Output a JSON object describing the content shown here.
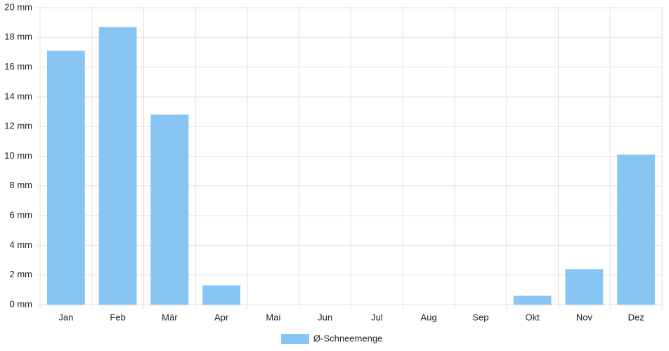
{
  "chart_data": {
    "type": "bar",
    "categories": [
      "Jan",
      "Feb",
      "Mär",
      "Apr",
      "Mai",
      "Jun",
      "Jul",
      "Aug",
      "Sep",
      "Okt",
      "Nov",
      "Dez"
    ],
    "series": [
      {
        "name": "Ø-Schneemenge",
        "color": "#88c5f2",
        "values": [
          17.1,
          18.7,
          12.8,
          1.3,
          0,
          0,
          0,
          0,
          0,
          0.6,
          2.4,
          10.1
        ]
      }
    ],
    "ylim": [
      0,
      20
    ],
    "yticks": [
      {
        "value": 0,
        "label": "0 mm"
      },
      {
        "value": 2,
        "label": "2 mm"
      },
      {
        "value": 4,
        "label": "4 mm"
      },
      {
        "value": 6,
        "label": "6 mm"
      },
      {
        "value": 8,
        "label": "8 mm"
      },
      {
        "value": 10,
        "label": "10 mm"
      },
      {
        "value": 12,
        "label": "12 mm"
      },
      {
        "value": 14,
        "label": "14 mm"
      },
      {
        "value": 16,
        "label": "16 mm"
      },
      {
        "value": 18,
        "label": "18 mm"
      },
      {
        "value": 20,
        "label": "20 mm"
      }
    ],
    "grid": true,
    "legend": "bottom"
  }
}
